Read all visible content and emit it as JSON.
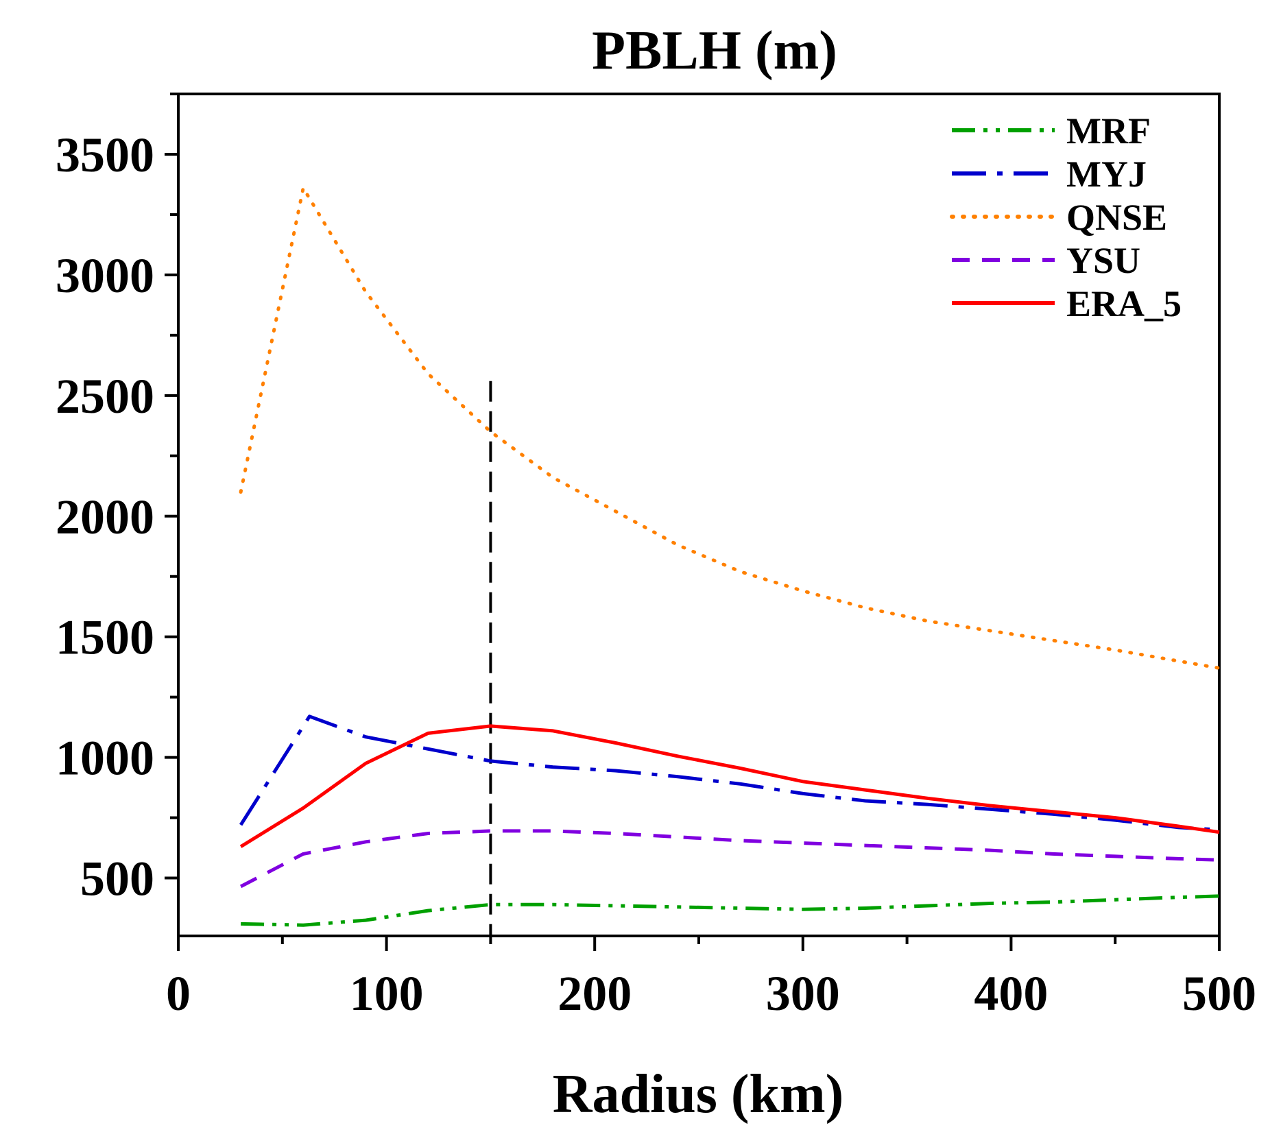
{
  "chart_data": {
    "type": "line",
    "title": "PBLH (m)",
    "xlabel": "Radius (km)",
    "ylabel": "",
    "xlim": [
      0,
      500
    ],
    "ylim": [
      260,
      3750
    ],
    "xticks": [
      0,
      100,
      200,
      300,
      400,
      500
    ],
    "xtick_labels": [
      "0",
      "100",
      "200",
      "300",
      "400",
      "500"
    ],
    "yticks": [
      500,
      1000,
      1500,
      2000,
      2500,
      3000,
      3500
    ],
    "ytick_labels": [
      "500",
      "1000",
      "1500",
      "2000",
      "2500",
      "3000",
      "3500"
    ],
    "grid": false,
    "legend_position": "top-right",
    "reference_line": {
      "x": 150,
      "style": "dashed",
      "color": "#000000"
    },
    "series": [
      {
        "name": "MRF",
        "color": "#00A000",
        "style": "dash-dot-dot",
        "x": [
          30,
          60,
          90,
          120,
          150,
          180,
          210,
          240,
          270,
          300,
          330,
          360,
          390,
          420,
          450,
          480,
          500
        ],
        "values": [
          310,
          305,
          325,
          365,
          390,
          390,
          385,
          380,
          375,
          370,
          375,
          385,
          395,
          400,
          410,
          420,
          425
        ]
      },
      {
        "name": "MYJ",
        "color": "#0000CC",
        "style": "dash-dot",
        "x": [
          30,
          63,
          90,
          120,
          150,
          180,
          210,
          240,
          270,
          300,
          330,
          360,
          390,
          420,
          450,
          480,
          500
        ],
        "values": [
          720,
          1170,
          1085,
          1035,
          985,
          960,
          945,
          920,
          890,
          850,
          820,
          805,
          785,
          765,
          740,
          710,
          700
        ]
      },
      {
        "name": "QNSE",
        "color": "#FF8000",
        "style": "dotted",
        "x": [
          30,
          60,
          90,
          120,
          150,
          180,
          210,
          240,
          270,
          300,
          330,
          360,
          390,
          420,
          450,
          480,
          500
        ],
        "values": [
          2100,
          3360,
          2930,
          2590,
          2350,
          2160,
          2020,
          1880,
          1770,
          1690,
          1620,
          1565,
          1525,
          1485,
          1445,
          1400,
          1370
        ]
      },
      {
        "name": "YSU",
        "color": "#8000E0",
        "style": "dashed",
        "x": [
          30,
          60,
          90,
          120,
          150,
          180,
          210,
          240,
          270,
          300,
          330,
          360,
          390,
          420,
          450,
          480,
          500
        ],
        "values": [
          465,
          600,
          650,
          685,
          695,
          695,
          685,
          670,
          655,
          645,
          635,
          625,
          615,
          600,
          590,
          580,
          575
        ]
      },
      {
        "name": "ERA_5",
        "color": "#FF0000",
        "style": "solid",
        "x": [
          30,
          60,
          90,
          120,
          150,
          180,
          210,
          240,
          270,
          300,
          330,
          360,
          390,
          420,
          450,
          480,
          500
        ],
        "values": [
          630,
          790,
          975,
          1100,
          1130,
          1110,
          1060,
          1005,
          955,
          900,
          865,
          830,
          800,
          775,
          750,
          715,
          690
        ]
      }
    ]
  }
}
